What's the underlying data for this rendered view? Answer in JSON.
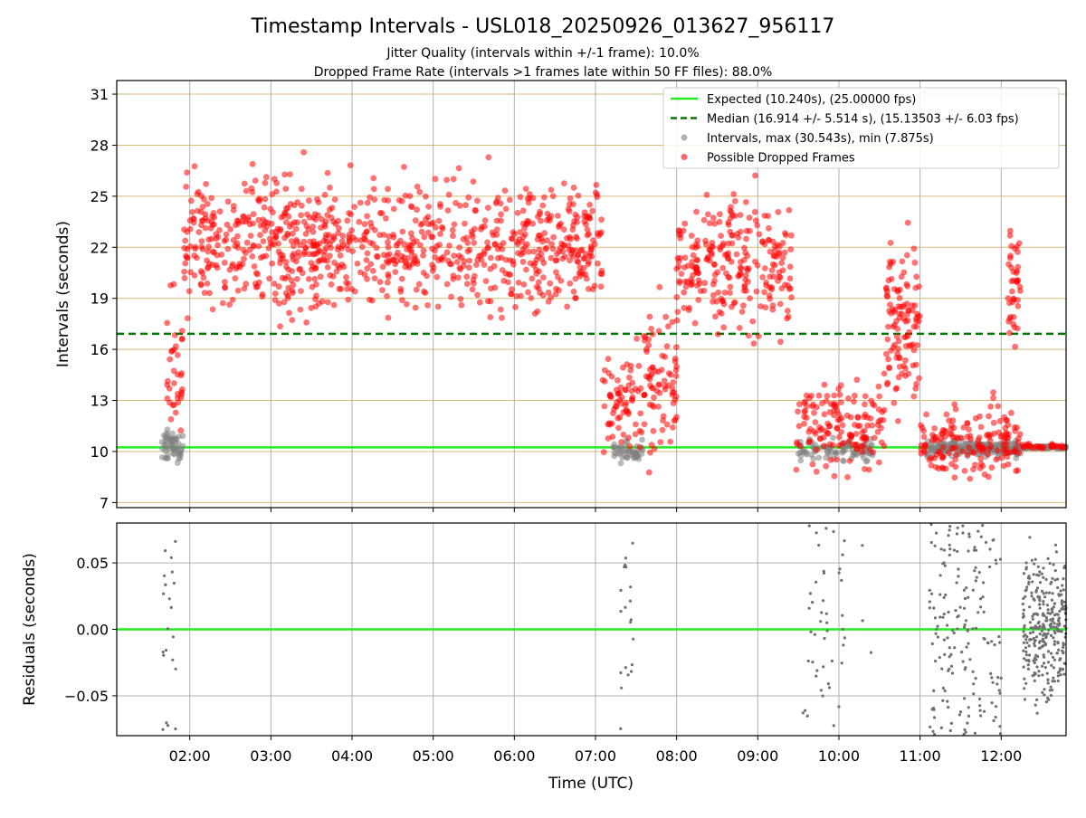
{
  "figure": {
    "title": "Timestamp Intervals - USL018_20250926_013627_956117",
    "subtitle1": "Jitter Quality (intervals within +/-1 frame): 10.0%",
    "subtitle2": "Dropped Frame Rate (intervals >1 frames late within 50 FF files): 88.0%",
    "xlabel": "Time (UTC)"
  },
  "chart_data": [
    {
      "type": "scatter",
      "ylabel": "Intervals (seconds)",
      "xlim": [
        "01:06",
        "12:48"
      ],
      "ylim": [
        6.7,
        31.8
      ],
      "yticks": [
        7,
        10,
        13,
        16,
        19,
        22,
        25,
        28,
        31
      ],
      "grid": true,
      "legend_position": "upper right",
      "legend": [
        "Expected (10.240s), (25.00000 fps)",
        "Median (16.914 +/- 5.514 s), (15.13503 +/- 6.03 fps)",
        "Intervals, max (30.543s), min (7.875s)",
        "Possible Dropped Frames"
      ],
      "reference_lines": [
        {
          "name": "Expected",
          "y": 10.24,
          "color": "#22ee22",
          "style": "solid"
        },
        {
          "name": "Median",
          "y": 16.914,
          "color": "#007700",
          "style": "dashed"
        }
      ],
      "series": [
        {
          "name": "Intervals",
          "color": "#808080",
          "segments": [
            {
              "start": "01:38",
              "end": "01:55",
              "mean": 10.3,
              "spread": 1.3,
              "count": 55
            },
            {
              "start": "07:13",
              "end": "07:35",
              "mean": 10.0,
              "spread": 0.9,
              "count": 45
            },
            {
              "start": "09:30",
              "end": "10:25",
              "mean": 10.1,
              "spread": 0.9,
              "count": 90
            },
            {
              "start": "11:05",
              "end": "12:15",
              "mean": 10.2,
              "spread": 0.7,
              "count": 200
            },
            {
              "start": "12:15",
              "end": "12:48",
              "mean": 10.24,
              "spread": 0.1,
              "count": 120
            }
          ]
        },
        {
          "name": "Possible Dropped Frames",
          "color": "#ff0000",
          "segments": [
            {
              "start": "01:43",
              "end": "01:55",
              "mean": 14.0,
              "spread": 7.0,
              "count": 35
            },
            {
              "start": "01:55",
              "end": "07:05",
              "mean": 22.2,
              "spread": 5.5,
              "count": 900
            },
            {
              "start": "07:05",
              "end": "07:35",
              "mean": 12.5,
              "spread": 5.0,
              "count": 70
            },
            {
              "start": "07:35",
              "end": "08:00",
              "mean": 14.0,
              "spread": 6.0,
              "count": 80
            },
            {
              "start": "08:00",
              "end": "09:25",
              "mean": 21.0,
              "spread": 5.5,
              "count": 250
            },
            {
              "start": "09:28",
              "end": "10:35",
              "mean": 11.5,
              "spread": 4.0,
              "count": 150
            },
            {
              "start": "10:35",
              "end": "11:00",
              "mean": 17.5,
              "spread": 6.5,
              "count": 110
            },
            {
              "start": "11:00",
              "end": "12:15",
              "mean": 10.6,
              "spread": 3.0,
              "count": 160
            },
            {
              "start": "12:05",
              "end": "12:15",
              "mean": 20.0,
              "spread": 6.0,
              "count": 40
            },
            {
              "start": "12:15",
              "end": "12:48",
              "mean": 10.3,
              "spread": 0.2,
              "count": 30
            }
          ]
        }
      ],
      "summary": {
        "expected_interval_s": 10.24,
        "median_s": 16.914,
        "std_s": 5.514,
        "max_s": 30.543,
        "min_s": 7.875
      }
    },
    {
      "type": "scatter",
      "ylabel": "Residuals (seconds)",
      "xlabel": "Time (UTC)",
      "xlim": [
        "01:06",
        "12:48"
      ],
      "ylim": [
        -0.08,
        0.08
      ],
      "yticks": [
        "−0.05",
        "0.00",
        "0.05"
      ],
      "xticks": [
        "02:00",
        "03:00",
        "04:00",
        "05:00",
        "06:00",
        "07:00",
        "08:00",
        "09:00",
        "10:00",
        "11:00",
        "12:00"
      ],
      "grid": true,
      "reference_lines": [
        {
          "name": "Zero",
          "y": 0.0,
          "color": "#22ee22",
          "style": "solid"
        }
      ],
      "series": [
        {
          "name": "Residuals",
          "color": "#707070",
          "segments": [
            {
              "start": "01:40",
              "end": "01:50",
              "count": 22
            },
            {
              "start": "07:17",
              "end": "07:28",
              "count": 20
            },
            {
              "start": "09:33",
              "end": "10:05",
              "count": 45
            },
            {
              "start": "10:17",
              "end": "10:25",
              "count": 3
            },
            {
              "start": "11:07",
              "end": "12:00",
              "count": 170
            },
            {
              "start": "12:16",
              "end": "12:48",
              "count": 300
            }
          ]
        }
      ]
    }
  ]
}
